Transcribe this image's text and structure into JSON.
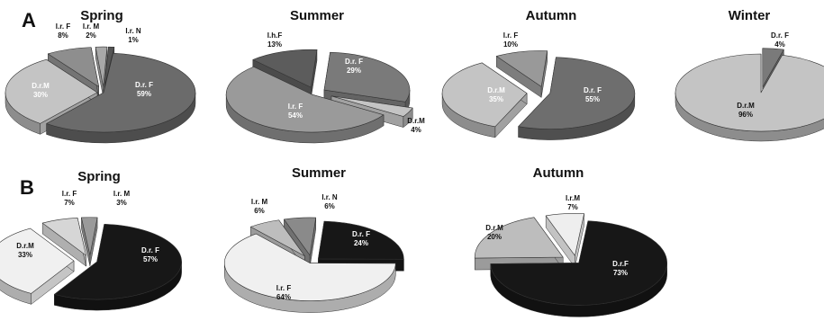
{
  "figure": {
    "panel_labels": [
      "A",
      "B"
    ]
  },
  "chart_data": [
    {
      "type": "pie",
      "panel": "A",
      "title": "Spring",
      "slices": [
        {
          "label": "D.r. F",
          "value": 59,
          "display": "59%",
          "color": "#6b6b6b",
          "text_color": "#ffffff"
        },
        {
          "label": "D.r.M",
          "value": 30,
          "display": "30%",
          "color": "#c4c4c4",
          "text_color": "#ffffff"
        },
        {
          "label": "I.r. F",
          "value": 8,
          "display": "8%",
          "color": "#8e8e8e",
          "text_color": "#111111"
        },
        {
          "label": "I.r. M",
          "value": 2,
          "display": "2%",
          "color": "#a8a8a8",
          "text_color": "#111111"
        },
        {
          "label": "I.r. N",
          "value": 1,
          "display": "1%",
          "color": "#555555",
          "text_color": "#111111"
        }
      ]
    },
    {
      "type": "pie",
      "panel": "A",
      "title": "Summer",
      "slices": [
        {
          "label": "D.r. F",
          "value": 29,
          "display": "29%",
          "color": "#7a7a7a",
          "text_color": "#ffffff"
        },
        {
          "label": "D.r.M",
          "value": 4,
          "display": "4%",
          "color": "#c4c4c4",
          "text_color": "#111111"
        },
        {
          "label": "I.r. F",
          "value": 54,
          "display": "54%",
          "color": "#9a9a9a",
          "text_color": "#ffffff"
        },
        {
          "label": "I.h.F",
          "value": 13,
          "display": "13%",
          "color": "#5c5c5c",
          "text_color": "#111111"
        }
      ]
    },
    {
      "type": "pie",
      "panel": "A",
      "title": "Autumn",
      "slices": [
        {
          "label": "D.r. F",
          "value": 55,
          "display": "55%",
          "color": "#6e6e6e",
          "text_color": "#ffffff"
        },
        {
          "label": "D.r.M",
          "value": 35,
          "display": "35%",
          "color": "#c4c4c4",
          "text_color": "#ffffff"
        },
        {
          "label": "I.r. F",
          "value": 10,
          "display": "10%",
          "color": "#999999",
          "text_color": "#111111"
        }
      ]
    },
    {
      "type": "pie",
      "panel": "A",
      "title": "Winter",
      "slices": [
        {
          "label": "D.r. F",
          "value": 4,
          "display": "4%",
          "color": "#7a7a7a",
          "text_color": "#111111"
        },
        {
          "label": "D.r.M",
          "value": 96,
          "display": "96%",
          "color": "#c4c4c4",
          "text_color": "#111111"
        }
      ]
    },
    {
      "type": "pie",
      "panel": "B",
      "title": "Spring",
      "slices": [
        {
          "label": "D.r. F",
          "value": 57,
          "display": "57%",
          "color": "#171717",
          "text_color": "#ffffff"
        },
        {
          "label": "D.r.M",
          "value": 33,
          "display": "33%",
          "color": "#f0f0f0",
          "text_color": "#111111"
        },
        {
          "label": "I.r. F",
          "value": 7,
          "display": "7%",
          "color": "#d6d6d6",
          "text_color": "#111111"
        },
        {
          "label": "I.r. M",
          "value": 3,
          "display": "3%",
          "color": "#9a9a9a",
          "text_color": "#111111"
        }
      ]
    },
    {
      "type": "pie",
      "panel": "B",
      "title": "Summer",
      "slices": [
        {
          "label": "D.r. F",
          "value": 24,
          "display": "24%",
          "color": "#171717",
          "text_color": "#ffffff"
        },
        {
          "label": "I.r. F",
          "value": 64,
          "display": "64%",
          "color": "#f0f0f0",
          "text_color": "#111111"
        },
        {
          "label": "I.r. M",
          "value": 6,
          "display": "6%",
          "color": "#bdbdbd",
          "text_color": "#111111"
        },
        {
          "label": "I.r. N",
          "value": 6,
          "display": "6%",
          "color": "#8a8a8a",
          "text_color": "#111111"
        }
      ]
    },
    {
      "type": "pie",
      "panel": "B",
      "title": "Autumn",
      "slices": [
        {
          "label": "D.r.F",
          "value": 73,
          "display": "73%",
          "color": "#171717",
          "text_color": "#ffffff"
        },
        {
          "label": "D.r.M",
          "value": 20,
          "display": "20%",
          "color": "#bdbdbd",
          "text_color": "#111111"
        },
        {
          "label": "I.r.M",
          "value": 7,
          "display": "7%",
          "color": "#eeeeee",
          "text_color": "#111111"
        }
      ]
    }
  ]
}
